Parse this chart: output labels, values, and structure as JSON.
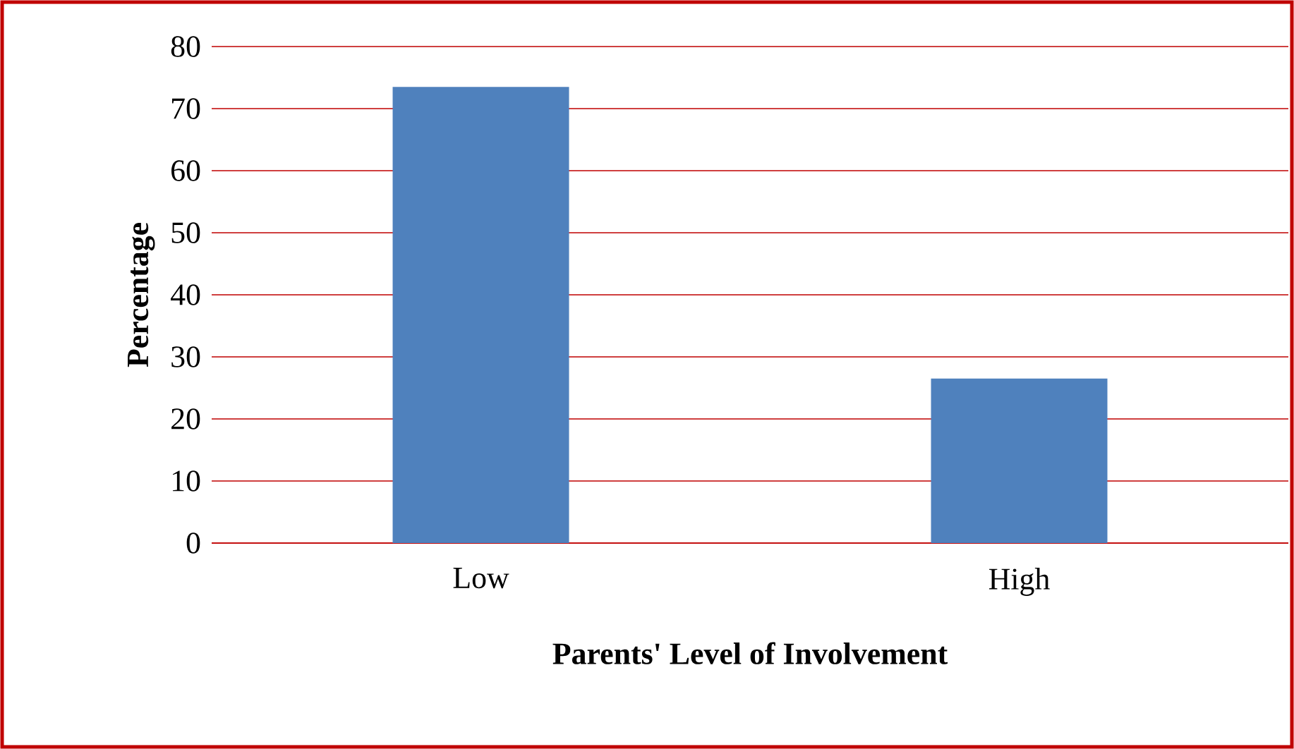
{
  "chart_data": {
    "type": "bar",
    "xlabel": "Parents' Level of Involvement",
    "ylabel": "Percentage",
    "categories": [
      "Low",
      "High"
    ],
    "values": [
      73.5,
      26.5
    ],
    "color": "#4f81bd",
    "ylim": [
      0,
      80
    ],
    "yticks": [
      0,
      10,
      20,
      30,
      40,
      50,
      60,
      70,
      80
    ],
    "grid": "y"
  }
}
